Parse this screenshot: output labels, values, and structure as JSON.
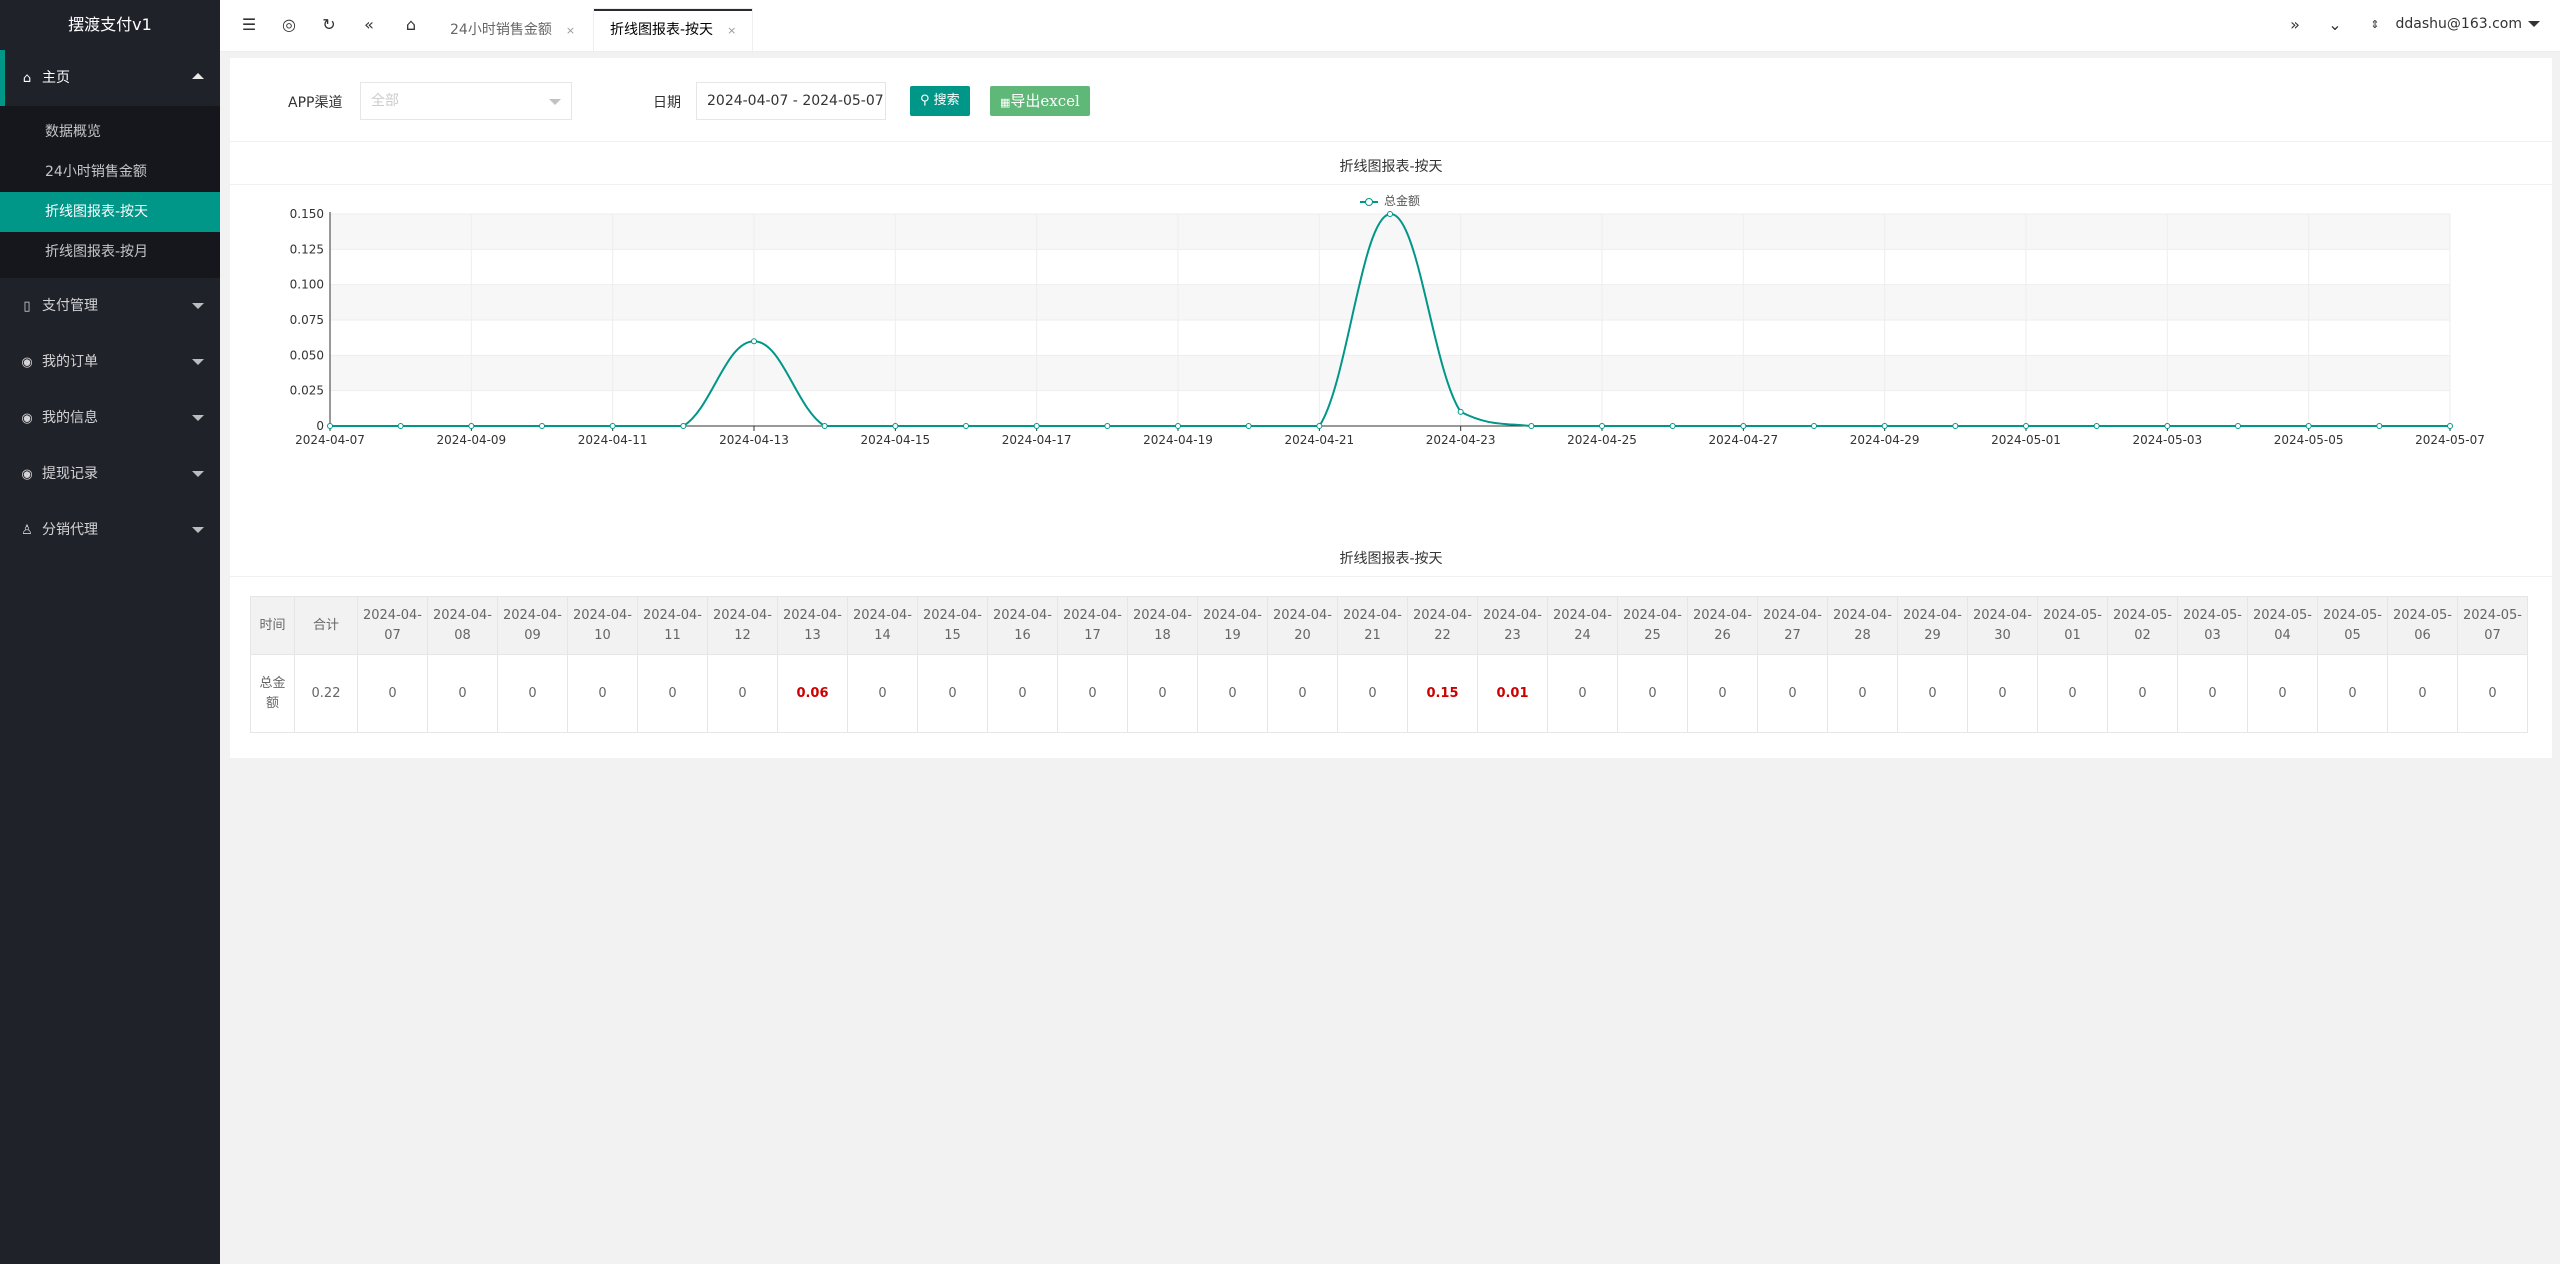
{
  "sidebar": {
    "logo": "摆渡支付v1",
    "home": "主页",
    "home_items": [
      {
        "label": "数据概览"
      },
      {
        "label": "24小时销售金额"
      },
      {
        "label": "折线图报表-按天"
      },
      {
        "label": "折线图报表-按月"
      }
    ],
    "groups": [
      {
        "label": "支付管理"
      },
      {
        "label": "我的订单"
      },
      {
        "label": "我的信息"
      },
      {
        "label": "提现记录"
      },
      {
        "label": "分销代理"
      }
    ]
  },
  "header": {
    "tabs": [
      {
        "label": "24小时销售金额",
        "close": "×"
      },
      {
        "label": "折线图报表-按天",
        "close": "×"
      }
    ],
    "user": "ddashu@163.com"
  },
  "filter": {
    "app_label": "APP渠道",
    "app_value": "全部",
    "date_label": "日期",
    "date_value": "2024-04-07 - 2024-05-07",
    "search_btn": "搜索",
    "excel_btn": "导出excel"
  },
  "chart_title": "折线图报表-按天",
  "table_title": "折线图报表-按天",
  "colors": {
    "accent": "#009688",
    "highlight": "#cc0000",
    "sidebar": "#20222a"
  },
  "chart_data": {
    "type": "line",
    "title": "折线图报表-按天",
    "series": [
      {
        "name": "总金额",
        "values": [
          0,
          0,
          0,
          0,
          0,
          0,
          0.06,
          0,
          0,
          0,
          0,
          0,
          0,
          0,
          0,
          0.15,
          0.01,
          0,
          0,
          0,
          0,
          0,
          0,
          0,
          0,
          0,
          0,
          0,
          0,
          0,
          0
        ]
      }
    ],
    "x": [
      "2024-04-07",
      "2024-04-08",
      "2024-04-09",
      "2024-04-10",
      "2024-04-11",
      "2024-04-12",
      "2024-04-13",
      "2024-04-14",
      "2024-04-15",
      "2024-04-16",
      "2024-04-17",
      "2024-04-18",
      "2024-04-19",
      "2024-04-20",
      "2024-04-21",
      "2024-04-22",
      "2024-04-23",
      "2024-04-24",
      "2024-04-25",
      "2024-04-26",
      "2024-04-27",
      "2024-04-28",
      "2024-04-29",
      "2024-04-30",
      "2024-05-01",
      "2024-05-02",
      "2024-05-03",
      "2024-05-04",
      "2024-05-05",
      "2024-05-06",
      "2024-05-07"
    ],
    "x_tick_labels": [
      "2024-04-07",
      "2024-04-09",
      "2024-04-11",
      "2024-04-13",
      "2024-04-15",
      "2024-04-17",
      "2024-04-19",
      "2024-04-21",
      "2024-04-23",
      "2024-04-25",
      "2024-04-27",
      "2024-04-29",
      "2024-05-01",
      "2024-05-03",
      "2024-05-05",
      "2024-05-07"
    ],
    "y_ticks": [
      "0",
      "0.025",
      "0.050",
      "0.075",
      "0.100",
      "0.125",
      "0.150"
    ],
    "ylim": [
      0,
      0.15
    ],
    "grid": true,
    "legend": "top-center"
  },
  "table": {
    "time_header": "时间",
    "total_header": "合计",
    "row_label": "总金额",
    "total_value": "0.22",
    "cells": [
      "0",
      "0",
      "0",
      "0",
      "0",
      "0",
      "0.06",
      "0",
      "0",
      "0",
      "0",
      "0",
      "0",
      "0",
      "0",
      "0.15",
      "0.01",
      "0",
      "0",
      "0",
      "0",
      "0",
      "0",
      "0",
      "0",
      "0",
      "0",
      "0",
      "0",
      "0",
      "0"
    ]
  }
}
